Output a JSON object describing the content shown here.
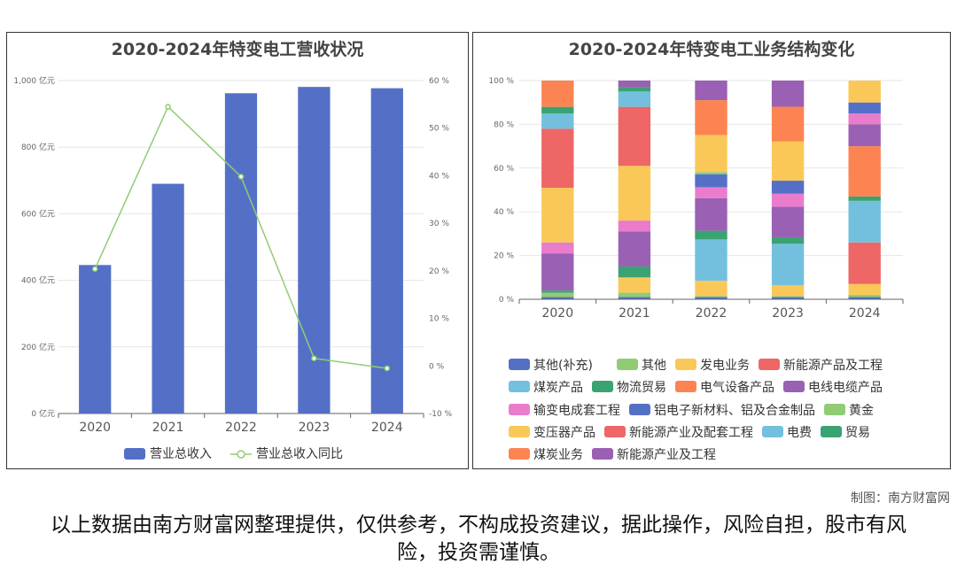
{
  "charts": {
    "left_title": "2020-2024年特变电工营收状况",
    "right_title": "2020-2024年特变电工业务结构变化"
  },
  "credit": "制图：南方财富网",
  "disclaimer": "以上数据由南方财富网整理提供，仅供参考，不构成投资建议，据此操作，风险自担，股市有风险，投资需谨慎。",
  "colors": {
    "bar": "#5470c6",
    "line": "#91cc75"
  },
  "chart_data": [
    {
      "type": "bar",
      "title": "2020-2024年特变电工营收状况",
      "categories": [
        "2020",
        "2021",
        "2022",
        "2023",
        "2024"
      ],
      "y_left_ticks": [
        "0 亿元",
        "200 亿元",
        "400 亿元",
        "600 亿元",
        "800 亿元",
        "1,000 亿元"
      ],
      "y_right_ticks": [
        "-10 %",
        "0 %",
        "10 %",
        "20 %",
        "30 %",
        "40 %",
        "50 %",
        "60 %"
      ],
      "ylim_left": [
        0,
        1000
      ],
      "ylim_right": [
        -10,
        60
      ],
      "series": [
        {
          "name": "营业总收入",
          "type": "bar",
          "axis": "left",
          "values": [
            446,
            690,
            962,
            981,
            977
          ]
        },
        {
          "name": "营业总收入同比",
          "type": "line",
          "axis": "right",
          "values": [
            20.4,
            54.5,
            39.8,
            1.6,
            -0.5
          ]
        }
      ],
      "legend_position": "bottom"
    },
    {
      "type": "bar",
      "stacked": true,
      "percent": true,
      "title": "2020-2024年特变电工业务结构变化",
      "categories": [
        "2020",
        "2021",
        "2022",
        "2023",
        "2024"
      ],
      "y_ticks": [
        "0 %",
        "20 %",
        "40 %",
        "60 %",
        "80 %",
        "100 %"
      ],
      "ylim": [
        0,
        100
      ],
      "legend_position": "bottom",
      "series": [
        {
          "name": "其他(补充)",
          "color": "#5470c6",
          "values": [
            1,
            1,
            1,
            1,
            1
          ]
        },
        {
          "name": "其他",
          "color": "#91cc75",
          "values": [
            2,
            2,
            0.5,
            0.5,
            1
          ]
        },
        {
          "name": "发电业务",
          "color": "#fac858",
          "values": [
            0,
            7,
            7,
            5,
            5
          ]
        },
        {
          "name": "新能源产品及工程",
          "color": "#ee6666",
          "values": [
            0,
            0,
            0,
            0,
            19
          ]
        },
        {
          "name": "煤炭产品",
          "color": "#73c0de",
          "values": [
            0,
            0,
            19,
            19,
            19
          ]
        },
        {
          "name": "物流贸易",
          "color": "#3ba272",
          "values": [
            1,
            5,
            4,
            3,
            2
          ]
        },
        {
          "name": "电气设备产品",
          "color": "#fc8452",
          "values": [
            0,
            0,
            0,
            0,
            23
          ]
        },
        {
          "name": "电线电缆产品",
          "color": "#9a60b4",
          "values": [
            17,
            16,
            15,
            14,
            10
          ]
        },
        {
          "name": "输变电成套工程",
          "color": "#ea7ccc",
          "values": [
            5,
            5,
            5,
            6,
            5
          ]
        },
        {
          "name": "铝电子新材料、铝及合金制品",
          "color": "#5470c6",
          "values": [
            0,
            0,
            6,
            6,
            5
          ]
        },
        {
          "name": "黄金",
          "color": "#91cc75",
          "values": [
            0,
            0,
            1,
            0,
            0
          ]
        },
        {
          "name": "变压器产品",
          "color": "#fac858",
          "values": [
            25,
            25,
            17,
            18,
            10
          ]
        },
        {
          "name": "新能源产业及配套工程",
          "color": "#ee6666",
          "values": [
            27,
            27,
            0,
            0,
            0
          ]
        },
        {
          "name": "电费",
          "color": "#73c0de",
          "values": [
            7,
            7,
            0,
            0,
            0
          ]
        },
        {
          "name": "贸易",
          "color": "#3ba272",
          "values": [
            3,
            2,
            0,
            0,
            0
          ]
        },
        {
          "name": "煤炭业务",
          "color": "#fc8452",
          "values": [
            12,
            0,
            16,
            16,
            0
          ]
        },
        {
          "name": "新能源产业及工程",
          "color": "#9a60b4",
          "values": [
            0,
            3,
            9,
            12,
            0
          ]
        }
      ]
    }
  ]
}
